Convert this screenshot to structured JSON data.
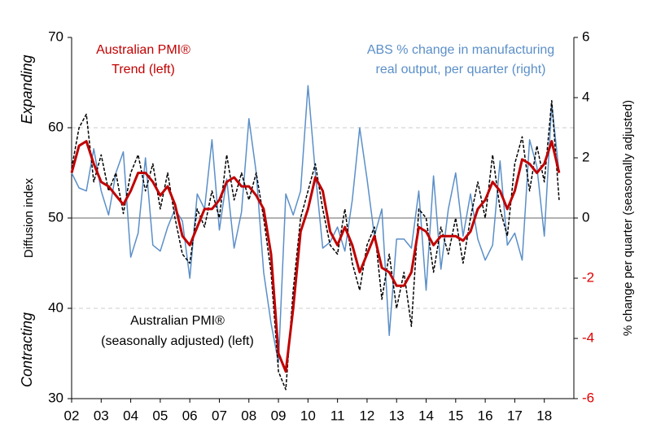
{
  "chart_data": {
    "type": "line",
    "x": [
      2002,
      2002.25,
      2002.5,
      2002.75,
      2003,
      2003.25,
      2003.5,
      2003.75,
      2004,
      2004.25,
      2004.5,
      2004.75,
      2005,
      2005.25,
      2005.5,
      2005.75,
      2006,
      2006.25,
      2006.5,
      2006.75,
      2007,
      2007.25,
      2007.5,
      2007.75,
      2008,
      2008.25,
      2008.5,
      2008.75,
      2009,
      2009.25,
      2009.5,
      2009.75,
      2010,
      2010.25,
      2010.5,
      2010.75,
      2011,
      2011.25,
      2011.5,
      2011.75,
      2012,
      2012.25,
      2012.5,
      2012.75,
      2013,
      2013.25,
      2013.5,
      2013.75,
      2014,
      2014.25,
      2014.5,
      2014.75,
      2015,
      2015.25,
      2015.5,
      2015.75,
      2016,
      2016.25,
      2016.5,
      2016.75,
      2017,
      2017.25,
      2017.5,
      2017.75,
      2018,
      2018.25,
      2018.5
    ],
    "series": [
      {
        "name": "ABS % change in manufacturing real output, per quarter (right)",
        "color": "#5b8fc8",
        "axis": "y2",
        "dashed": false,
        "width": 1.5,
        "values": [
          1.5,
          1.0,
          0.9,
          2.3,
          0.9,
          0.1,
          1.5,
          2.2,
          -1.3,
          -0.5,
          2.0,
          -0.9,
          -1.1,
          -0.3,
          0.3,
          -0.1,
          -2.0,
          0.8,
          0.3,
          2.6,
          -0.4,
          1.3,
          -1.0,
          0.2,
          3.3,
          1.5,
          -1.8,
          -3.5,
          -4.8,
          0.8,
          0.1,
          0.9,
          4.4,
          1.5,
          -1.0,
          -0.8,
          -0.3,
          -1.1,
          0.6,
          3.0,
          1.3,
          -0.6,
          0.3,
          -3.9,
          -0.7,
          -0.7,
          -1.0,
          0.9,
          -2.4,
          1.4,
          -1.7,
          0.3,
          1.5,
          -0.6,
          0.8,
          -0.7,
          -1.4,
          -0.9,
          1.9,
          -0.9,
          -0.5,
          -1.4,
          2.6,
          1.7,
          -0.6,
          3.8,
          1.5
        ]
      },
      {
        "name": "Australian PMI® (seasonally adjusted) (left)",
        "color": "#000000",
        "axis": "y",
        "dashed": true,
        "width": 1.5,
        "values": [
          55.5,
          60,
          61.5,
          54,
          57,
          53,
          55,
          50.5,
          55,
          57,
          53,
          56,
          51,
          55,
          50,
          46,
          45,
          51,
          49,
          53,
          50,
          57,
          52,
          55,
          52,
          55,
          50,
          44,
          33,
          31,
          42,
          50,
          53,
          56,
          51,
          47,
          46,
          51,
          45,
          42,
          47,
          49,
          41,
          46,
          40,
          44,
          38,
          51,
          50,
          44,
          49,
          46,
          50,
          45,
          50,
          54,
          50,
          57,
          51,
          48,
          56,
          59,
          53,
          58,
          54,
          63,
          52
        ]
      },
      {
        "name": "Australian PMI® Trend (left)",
        "color": "#c00000",
        "axis": "y",
        "dashed": false,
        "width": 3,
        "values": [
          55,
          58,
          58.5,
          56,
          54,
          53.5,
          52.5,
          51.5,
          53,
          55,
          55,
          54,
          52.5,
          53.5,
          51.5,
          48,
          47,
          49,
          51,
          51,
          52,
          54,
          54.5,
          53.5,
          53.5,
          52.5,
          51,
          46,
          35,
          33,
          40,
          48.5,
          51,
          54.5,
          53,
          48.5,
          47,
          49,
          47,
          44,
          46,
          48,
          44.5,
          44,
          42.5,
          42.5,
          44,
          49,
          48.5,
          47,
          48,
          48,
          48,
          47.5,
          48.5,
          51,
          52,
          54,
          53,
          51,
          53,
          56.5,
          56,
          55,
          56,
          58.5,
          55
        ]
      }
    ],
    "annotations": [
      "Australian PMI®",
      "Trend (left)",
      "ABS % change in manufacturing",
      "real output, per quarter (right)",
      "Australian PMI®",
      "(seasonally adjusted) (left)",
      "Expanding",
      "Contracting"
    ],
    "ylabel": "Diffusion index",
    "y2label": "% change per quarter (seasonally adjusted)",
    "xlim": [
      2002,
      2019
    ],
    "xticks": [
      {
        "value": 2002,
        "label": "02"
      },
      {
        "value": 2003,
        "label": "03"
      },
      {
        "value": 2004,
        "label": "04"
      },
      {
        "value": 2005,
        "label": "05"
      },
      {
        "value": 2006,
        "label": "06"
      },
      {
        "value": 2007,
        "label": "07"
      },
      {
        "value": 2008,
        "label": "08"
      },
      {
        "value": 2009,
        "label": "09"
      },
      {
        "value": 2010,
        "label": "10"
      },
      {
        "value": 2011,
        "label": "11"
      },
      {
        "value": 2012,
        "label": "12"
      },
      {
        "value": 2013,
        "label": "13"
      },
      {
        "value": 2014,
        "label": "14"
      },
      {
        "value": 2015,
        "label": "15"
      },
      {
        "value": 2016,
        "label": "16"
      },
      {
        "value": 2017,
        "label": "17"
      },
      {
        "value": 2018,
        "label": "18"
      }
    ],
    "ylim": [
      30,
      70
    ],
    "yticks": [
      30,
      40,
      50,
      60,
      70
    ],
    "y2lim": [
      -6,
      6
    ],
    "y2ticks": [
      -6,
      -4,
      -2,
      0,
      2,
      4,
      6
    ],
    "grid": true
  }
}
